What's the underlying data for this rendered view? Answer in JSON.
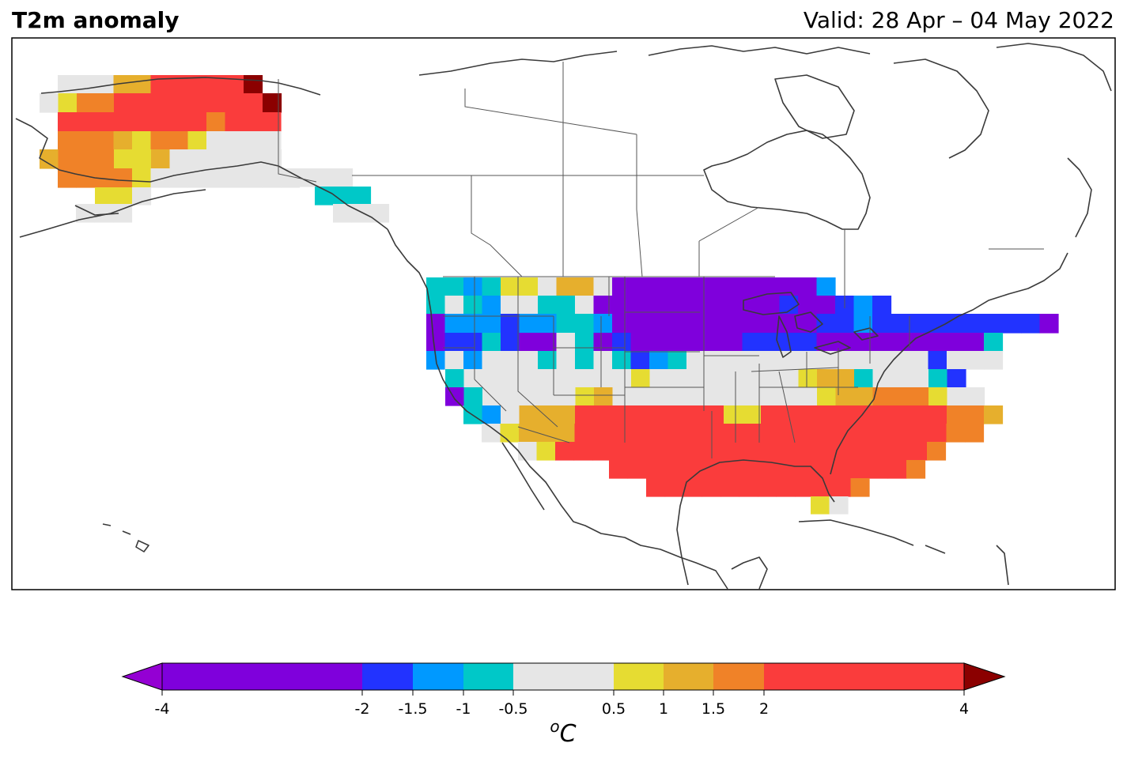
{
  "header": {
    "title": "T2m anomaly",
    "valid": "Valid: 28 Apr – 04 May 2022"
  },
  "colorbar": {
    "unit_label": "oC",
    "ticks": [
      "-4",
      "-2",
      "-1.5",
      "-1",
      "-0.5",
      "0.5",
      "1",
      "1.5",
      "2",
      "4"
    ],
    "bins": [
      {
        "from": -4,
        "to": -2,
        "color": "#7F00DC"
      },
      {
        "from": -2,
        "to": -1.5,
        "color": "#2233FF"
      },
      {
        "from": -1.5,
        "to": -1,
        "color": "#0099FF"
      },
      {
        "from": -1,
        "to": -0.5,
        "color": "#00C8C8"
      },
      {
        "from": -0.5,
        "to": 0.5,
        "color": "#E6E6E6"
      },
      {
        "from": 0.5,
        "to": 1,
        "color": "#E6DC32"
      },
      {
        "from": 1,
        "to": 1.5,
        "color": "#E6AF2D"
      },
      {
        "from": 1.5,
        "to": 2,
        "color": "#F08228"
      },
      {
        "from": 2,
        "to": 4,
        "color": "#FA3C3C"
      }
    ],
    "under_color": "#9400D3",
    "over_color": "#8B0000"
  },
  "map": {
    "region": "North America",
    "features": [
      "coastlines",
      "country borders",
      "US state borders",
      "Canadian province borders"
    ]
  },
  "colors": {
    "background": "#ffffff",
    "coast": "#3a3a3a",
    "border": "#555555"
  }
}
